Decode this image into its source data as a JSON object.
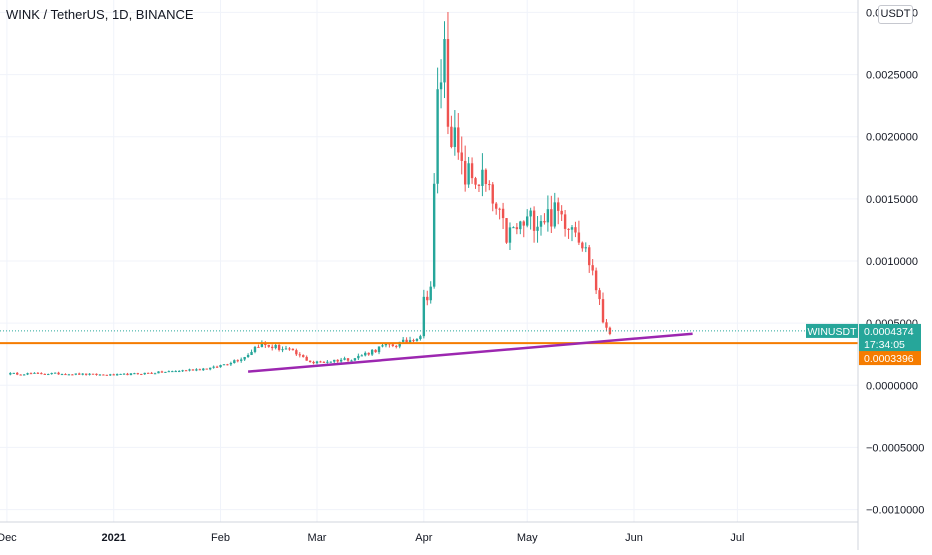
{
  "header": {
    "title": "WINK / TetherUS, 1D, BINANCE",
    "currency_button": "USDT"
  },
  "price_labels": {
    "symbol": "WINUSDT",
    "last_price": "0.0004374",
    "countdown": "17:34:05",
    "level_price": "0.0003396"
  },
  "colors": {
    "up": "#26a69a",
    "down": "#ef5350",
    "horizontal_line": "#f57c00",
    "trend_line": "#9c27b0",
    "last_price_badge": "#26a69a",
    "level_badge": "#f57c00"
  },
  "chart_data": {
    "type": "candlestick",
    "title": "WINK / TetherUS, 1D, BINANCE",
    "ylim": [
      -0.0011,
      0.0031
    ],
    "y_ticks": [
      "0.0030000",
      "0.0025000",
      "0.0020000",
      "0.0015000",
      "0.0010000",
      "0.0005000",
      "0.0000000",
      "−0.0005000",
      "−0.0010000"
    ],
    "y_tick_values": [
      0.003,
      0.0025,
      0.002,
      0.0015,
      0.001,
      0.0005,
      0,
      -0.0005,
      -0.001
    ],
    "x_ticks": [
      "Dec",
      "2021",
      "Feb",
      "Mar",
      "Apr",
      "May",
      "Jun",
      "Jul"
    ],
    "x_tick_dates": [
      "2020-12-01",
      "2021-01-01",
      "2021-02-01",
      "2021-03-01",
      "2021-04-01",
      "2021-05-01",
      "2021-06-01",
      "2021-07-01"
    ],
    "x_range": [
      "2020-11-29",
      "2021-08-05"
    ],
    "grid": true,
    "horizontal_line": 0.0003396,
    "last_price": 0.0004374,
    "trend_line": {
      "start": [
        "2021-02-09",
        0.00011
      ],
      "end": [
        "2021-06-18",
        0.000415
      ]
    },
    "anchors": [
      [
        "2020-12-01",
        9.3e-05
      ],
      [
        "2020-12-15",
        9.4e-05
      ],
      [
        "2021-01-01",
        8.2e-05
      ],
      [
        "2021-01-15",
        0.000105
      ],
      [
        "2021-01-30",
        0.00014
      ],
      [
        "2021-02-08",
        0.00023
      ],
      [
        "2021-02-12",
        0.00033
      ],
      [
        "2021-02-20",
        0.00029
      ],
      [
        "2021-02-28",
        0.00018
      ],
      [
        "2021-03-12",
        0.00022
      ],
      [
        "2021-03-20",
        0.00031
      ],
      [
        "2021-03-26",
        0.00034
      ],
      [
        "2021-03-31",
        0.00041
      ],
      [
        "2021-04-01",
        0.00068
      ],
      [
        "2021-04-03",
        0.0008
      ],
      [
        "2021-04-05",
        0.0023
      ],
      [
        "2021-04-07",
        0.0027
      ],
      [
        "2021-04-08",
        0.0022
      ],
      [
        "2021-04-12",
        0.0017
      ],
      [
        "2021-04-18",
        0.00165
      ],
      [
        "2021-04-25",
        0.0012
      ],
      [
        "2021-05-03",
        0.00135
      ],
      [
        "2021-05-10",
        0.00138
      ],
      [
        "2021-05-15",
        0.0013
      ],
      [
        "2021-05-20",
        0.00092
      ],
      [
        "2021-05-23",
        0.00052
      ],
      [
        "2021-05-25",
        0.00044
      ]
    ]
  }
}
